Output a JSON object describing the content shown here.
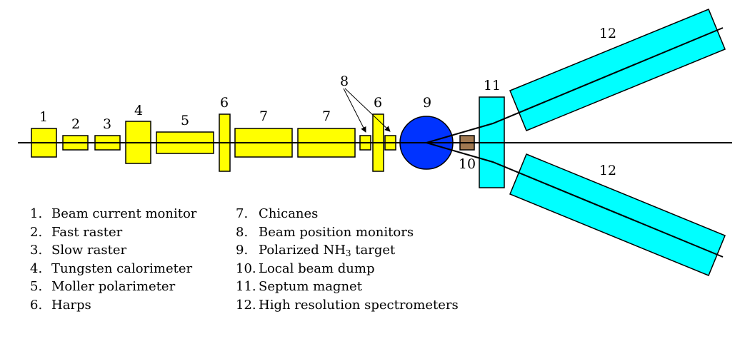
{
  "colors": {
    "beamline_element": "#ffff00",
    "target": "#0033ff",
    "beam_dump": "#a07850",
    "magnet": "#00ffff",
    "stroke": "#000000"
  },
  "labels": {
    "bcm": "1",
    "fast_raster": "2",
    "slow_raster": "3",
    "calorimeter": "4",
    "moller": "5",
    "harp_a": "6",
    "chicane_a": "7",
    "chicane_b": "7",
    "bpm": "8",
    "harp_b": "6",
    "target": "9",
    "beam_dump": "10",
    "septum": "11",
    "hrs_upper": "12",
    "hrs_lower": "12"
  },
  "legend": {
    "left": [
      {
        "num": "1.",
        "text": "Beam current monitor"
      },
      {
        "num": "2.",
        "text": "Fast raster"
      },
      {
        "num": "3.",
        "text": "Slow raster"
      },
      {
        "num": "4.",
        "text": "Tungsten calorimeter"
      },
      {
        "num": "5.",
        "text": "Moller polarimeter"
      },
      {
        "num": "6.",
        "text": "Harps"
      }
    ],
    "right": [
      {
        "num": "7.",
        "text": "Chicanes"
      },
      {
        "num": "8.",
        "text": "Beam position monitors"
      },
      {
        "num": "9.",
        "text": "Polarized NH",
        "sub": "3",
        "tail": " target"
      },
      {
        "num": "10.",
        "text": "Local beam dump"
      },
      {
        "num": "11.",
        "text": "Septum magnet"
      },
      {
        "num": "12.",
        "text": "High resolution spectrometers"
      }
    ]
  }
}
